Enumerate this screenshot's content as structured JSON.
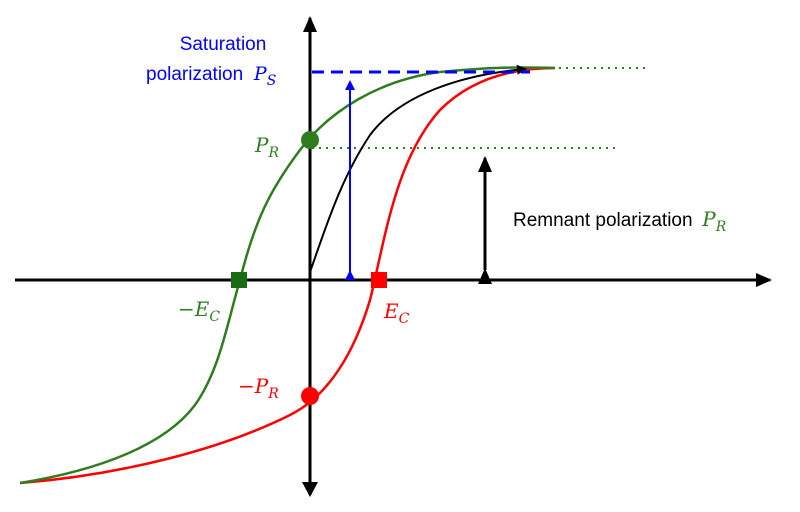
{
  "colors": {
    "axis": "#000000",
    "upper_branch": "#2e7d1f",
    "lower_branch": "#ff0000",
    "initial_curve": "#000000",
    "saturation": "#0000ff",
    "remnant_arrow": "#000000"
  },
  "labels": {
    "saturation_line1": "Saturation",
    "saturation_line2": "polarization",
    "ps_symbol": "P",
    "ps_sub": "S",
    "pr_symbol": "P",
    "pr_sub": "R",
    "neg_pr_symbol": "−P",
    "neg_pr_sub": "R",
    "neg_ec_symbol": "−E",
    "neg_ec_sub": "C",
    "ec_symbol": "E",
    "ec_sub": "C",
    "remnant_text": "Remnant polarization",
    "remnant_symbol": "P",
    "remnant_sub": "R"
  }
}
